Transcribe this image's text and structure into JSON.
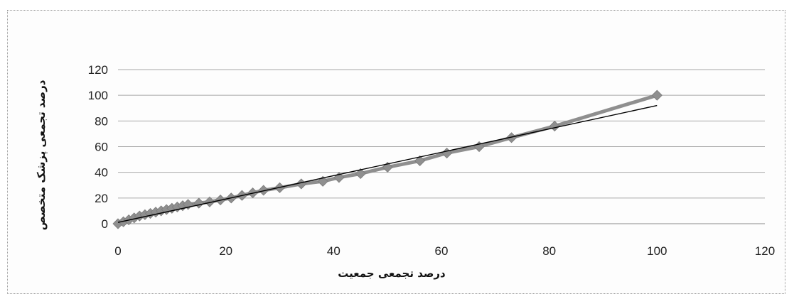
{
  "chart_data": {
    "type": "scatter",
    "title": "",
    "xlabel": "درصد تجمعی جمعیت",
    "ylabel": "درصد تجمعی پزشک متخصص",
    "xlim": [
      0,
      120
    ],
    "ylim": [
      0,
      120
    ],
    "xticks": [
      0,
      20,
      40,
      60,
      80,
      100,
      120
    ],
    "yticks": [
      0,
      20,
      40,
      60,
      80,
      100,
      120
    ],
    "grid": "horizontal",
    "series": [
      {
        "kind": "markers-line",
        "marker": "diamond",
        "color": "#8f8f8f",
        "x": [
          0,
          1,
          2,
          3,
          4,
          5,
          6,
          7,
          8,
          9,
          10,
          11,
          12,
          13,
          15,
          17,
          19,
          21,
          23,
          25,
          27,
          30,
          34,
          38,
          41,
          45,
          50,
          56,
          61,
          67,
          73,
          81,
          100
        ],
        "y": [
          0,
          1.5,
          3,
          4.5,
          6,
          7,
          8,
          9,
          10,
          11,
          12,
          13,
          14,
          15,
          16,
          17,
          18.5,
          20,
          22,
          24,
          26,
          28,
          31,
          33,
          36,
          39,
          44,
          49,
          55,
          60,
          67,
          76,
          100
        ]
      },
      {
        "kind": "trendline",
        "color": "#000000",
        "x": [
          0,
          100
        ],
        "y": [
          1,
          92
        ]
      }
    ]
  }
}
